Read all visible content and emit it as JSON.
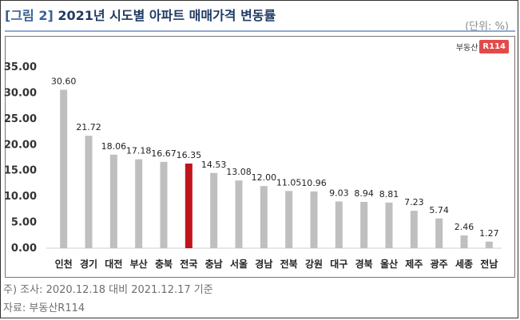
{
  "header": {
    "tag": "[그림 2]",
    "title": "2021년 시도별 아파트 매매가격 변동률",
    "unit": "(단위: %)"
  },
  "logo": {
    "text": "부동산",
    "badge": "R114"
  },
  "footer": {
    "note": "주) 조사: 2020.12.18 대비 2021.12.17 기준",
    "source": "자료: 부동산R114"
  },
  "colors": {
    "bar": "#bfbfbf",
    "highlight": "#c0141c",
    "grid": "#d9d9d9"
  },
  "chart_data": {
    "type": "bar",
    "categories": [
      "인천",
      "경기",
      "대전",
      "부산",
      "충북",
      "전국",
      "충남",
      "서울",
      "경남",
      "전북",
      "강원",
      "대구",
      "경북",
      "울산",
      "제주",
      "광주",
      "세종",
      "전남"
    ],
    "values": [
      30.6,
      21.72,
      18.06,
      17.18,
      16.67,
      16.35,
      14.53,
      13.08,
      12.0,
      11.05,
      10.96,
      9.03,
      8.94,
      8.81,
      7.23,
      5.74,
      2.46,
      1.27
    ],
    "value_labels": [
      "30.60",
      "21.72",
      "18.06",
      "17.18",
      "16.67",
      "16.35",
      "14.53",
      "13.08",
      "12.00",
      "11.05",
      "10.96",
      "9.03",
      "8.94",
      "8.81",
      "7.23",
      "5.74",
      "2.46",
      "1.27"
    ],
    "highlight_category": "전국",
    "yticks": [
      "0.00",
      "5.00",
      "10.00",
      "15.00",
      "20.00",
      "25.00",
      "30.00",
      "35.00"
    ],
    "ylim": [
      0,
      35
    ],
    "grid": false,
    "title": "",
    "xlabel": "",
    "ylabel": ""
  }
}
